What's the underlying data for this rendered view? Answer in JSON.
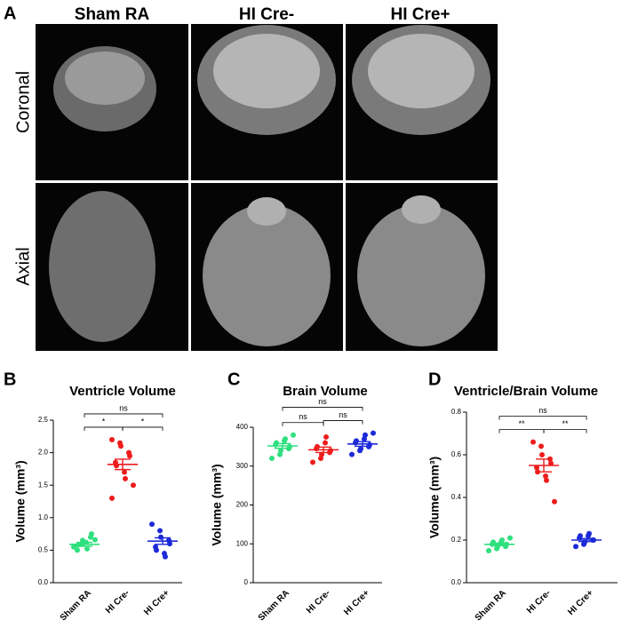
{
  "panel_a": {
    "label": "A",
    "columns": [
      "Sham RA",
      "HI Cre-",
      "HI Cre+"
    ],
    "rows": [
      "Coronal",
      "Axial"
    ]
  },
  "chart_data": [
    {
      "type": "dot",
      "panel": "B",
      "title": "Ventricle Volume",
      "y_label": "Volume (mm³)",
      "categories": [
        "Sham RA",
        "HI Cre-",
        "HI Cre+"
      ],
      "groups": [
        {
          "color": "#2fe07f",
          "values": [
            0.55,
            0.6,
            0.65,
            0.7,
            0.75,
            0.5,
            0.58,
            0.62,
            0.52,
            0.66
          ],
          "mean": 0.59,
          "sem": 0.03
        },
        {
          "color": "#ee1c1c",
          "values": [
            2.2,
            2.15,
            2.1,
            2.0,
            1.95,
            1.85,
            1.8,
            1.7,
            1.6,
            1.5,
            1.3
          ],
          "mean": 1.82,
          "sem": 0.08
        },
        {
          "color": "#1c2ad8",
          "values": [
            0.9,
            0.8,
            0.7,
            0.65,
            0.6,
            0.55,
            0.5,
            0.45,
            0.4
          ],
          "mean": 0.64,
          "sem": 0.05
        }
      ],
      "comparisons": [
        {
          "groups": [
            0,
            1
          ],
          "label": "*"
        },
        {
          "groups": [
            1,
            2
          ],
          "label": "*"
        },
        {
          "groups": [
            0,
            2
          ],
          "label": "ns"
        }
      ],
      "ylim": [
        0,
        2.5
      ],
      "yticks": [
        {
          "value": 0,
          "label": "0.0"
        },
        0.5,
        {
          "value": 1,
          "label": "1.0"
        },
        1.5,
        {
          "value": 2,
          "label": "2.0"
        },
        2.5
      ]
    },
    {
      "type": "dot",
      "panel": "C",
      "title": "Brain Volume",
      "y_label": "Volume (mm³)",
      "categories": [
        "Sham RA",
        "HI Cre-",
        "HI Cre+"
      ],
      "groups": [
        {
          "color": "#2fe07f",
          "values": [
            320,
            330,
            340,
            345,
            350,
            355,
            360,
            365,
            370,
            380
          ],
          "mean": 352,
          "sem": 6
        },
        {
          "color": "#ee1c1c",
          "values": [
            310,
            320,
            330,
            335,
            340,
            345,
            350,
            360,
            375
          ],
          "mean": 342,
          "sem": 7
        },
        {
          "color": "#1c2ad8",
          "values": [
            330,
            340,
            345,
            350,
            355,
            360,
            365,
            370,
            380,
            385
          ],
          "mean": 357,
          "sem": 6
        }
      ],
      "comparisons": [
        {
          "groups": [
            0,
            1
          ],
          "label": "ns"
        },
        {
          "groups": [
            1,
            2
          ],
          "label": "ns"
        },
        {
          "groups": [
            0,
            2
          ],
          "label": "ns"
        }
      ],
      "ylim": [
        0,
        400
      ],
      "yticks": [
        0,
        100,
        200,
        300,
        400
      ]
    },
    {
      "type": "dot",
      "panel": "D",
      "title": "Ventricle/Brain Volume",
      "y_label": "Volume (mm³)",
      "categories": [
        "Sham RA",
        "HI Cre-",
        "HI Cre+"
      ],
      "groups": [
        {
          "color": "#2fe07f",
          "values": [
            0.15,
            0.16,
            0.17,
            0.17,
            0.18,
            0.18,
            0.19,
            0.19,
            0.2,
            0.21
          ],
          "mean": 0.18,
          "sem": 0.006
        },
        {
          "color": "#ee1c1c",
          "values": [
            0.66,
            0.64,
            0.6,
            0.58,
            0.56,
            0.54,
            0.52,
            0.5,
            0.48,
            0.38
          ],
          "mean": 0.55,
          "sem": 0.03
        },
        {
          "color": "#1c2ad8",
          "values": [
            0.17,
            0.18,
            0.19,
            0.2,
            0.2,
            0.21,
            0.22,
            0.22,
            0.23
          ],
          "mean": 0.2,
          "sem": 0.007
        }
      ],
      "comparisons": [
        {
          "groups": [
            0,
            1
          ],
          "label": "**"
        },
        {
          "groups": [
            1,
            2
          ],
          "label": "**"
        },
        {
          "groups": [
            0,
            2
          ],
          "label": "ns"
        }
      ],
      "ylim": [
        0,
        0.8
      ],
      "yticks": [
        {
          "value": 0,
          "label": "0.0"
        },
        0.2,
        0.4,
        0.6,
        0.8
      ]
    }
  ]
}
